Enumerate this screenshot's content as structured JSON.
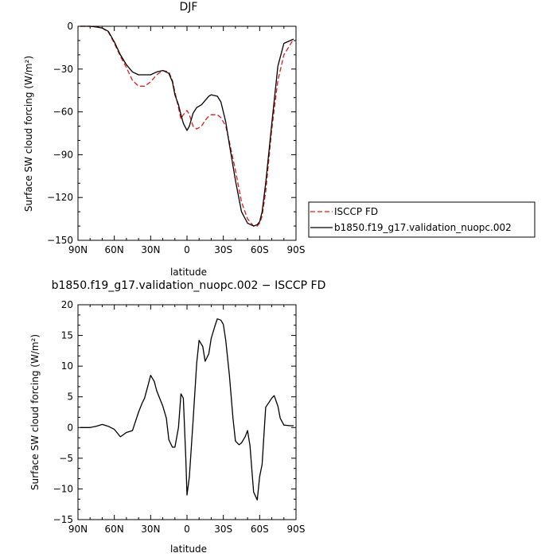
{
  "chart_data": [
    {
      "type": "line",
      "title": "DJF",
      "xlabel": "latitude",
      "ylabel": "Surface SW cloud forcing (W/m²)",
      "xlim": [
        -90,
        90
      ],
      "ylim": [
        -150,
        0
      ],
      "x_ticks": [
        -90,
        -60,
        -30,
        0,
        30,
        60,
        90
      ],
      "x_tick_labels": [
        "90N",
        "60N",
        "30N",
        "0",
        "30S",
        "60S",
        "90S"
      ],
      "y_ticks": [
        0,
        -30,
        -60,
        -90,
        -120,
        -150
      ],
      "y_tick_labels": [
        "0",
        "−30",
        "−60",
        "−90",
        "−120",
        "−150"
      ],
      "legend_position": "right",
      "series": [
        {
          "name": "ISCCP FD",
          "color": "#e41a1c",
          "dash": "dashed",
          "x": [
            -88,
            -80,
            -75,
            -70,
            -65,
            -60,
            -55,
            -50,
            -45,
            -40,
            -35,
            -30,
            -25,
            -20,
            -15,
            -12,
            -10,
            -7,
            -5,
            -3,
            0,
            2,
            5,
            8,
            12,
            15,
            18,
            20,
            25,
            28,
            32,
            35,
            40,
            45,
            50,
            55,
            58,
            60,
            62,
            65,
            70,
            75,
            80,
            88
          ],
          "y": [
            0,
            0,
            -0.4,
            -1.2,
            -4,
            -12,
            -21,
            -29,
            -38,
            -42,
            -42,
            -39,
            -34,
            -31,
            -32,
            -38,
            -46,
            -57,
            -65,
            -62,
            -59,
            -62,
            -70,
            -72,
            -70,
            -66,
            -63,
            -62,
            -62,
            -64,
            -70,
            -81,
            -101,
            -123,
            -135,
            -140,
            -140,
            -138,
            -133,
            -116,
            -72,
            -38,
            -20,
            -9
          ]
        },
        {
          "name": "b1850.f19_g17.validation_nuopc.002",
          "color": "#000000",
          "dash": "solid",
          "x": [
            -88,
            -80,
            -75,
            -70,
            -65,
            -60,
            -55,
            -50,
            -45,
            -40,
            -35,
            -30,
            -25,
            -20,
            -15,
            -12,
            -10,
            -7,
            -5,
            -3,
            0,
            2,
            5,
            8,
            12,
            15,
            18,
            20,
            25,
            28,
            32,
            35,
            40,
            45,
            50,
            55,
            58,
            60,
            62,
            65,
            70,
            75,
            80,
            88
          ],
          "y": [
            0,
            0,
            -0.5,
            -1.2,
            -3.5,
            -11,
            -20,
            -27,
            -32,
            -34,
            -34,
            -34,
            -32,
            -31,
            -33,
            -39,
            -48,
            -55,
            -62,
            -68,
            -73,
            -70,
            -61,
            -57,
            -55,
            -52,
            -49,
            -48,
            -49,
            -53,
            -67,
            -83,
            -108,
            -130,
            -138,
            -140,
            -139,
            -137,
            -130,
            -110,
            -68,
            -28,
            -12,
            -9
          ]
        }
      ]
    },
    {
      "type": "line",
      "title": "b1850.f19_g17.validation_nuopc.002 − ISCCP FD",
      "xlabel": "latitude",
      "ylabel": "Surface SW cloud forcing (W/m²)",
      "xlim": [
        -90,
        90
      ],
      "ylim": [
        -15,
        20
      ],
      "x_ticks": [
        -90,
        -60,
        -30,
        0,
        30,
        60,
        90
      ],
      "x_tick_labels": [
        "90N",
        "60N",
        "30N",
        "0",
        "30S",
        "60S",
        "90S"
      ],
      "y_ticks": [
        20,
        15,
        10,
        5,
        0,
        -5,
        -10,
        -15
      ],
      "y_tick_labels": [
        "20",
        "15",
        "10",
        "5",
        "0",
        "−5",
        "−10",
        "−15"
      ],
      "series": [
        {
          "color": "#000000",
          "dash": "solid",
          "x": [
            -88,
            -80,
            -75,
            -70,
            -65,
            -60,
            -55,
            -50,
            -45,
            -40,
            -37,
            -35,
            -32,
            -30,
            -27,
            -25,
            -22,
            -20,
            -17,
            -15,
            -12,
            -10,
            -7,
            -5,
            -3,
            -1,
            0,
            2,
            5,
            8,
            10,
            13,
            15,
            18,
            20,
            23,
            25,
            28,
            30,
            32,
            35,
            38,
            40,
            43,
            45,
            48,
            50,
            52,
            55,
            58,
            60,
            62,
            65,
            70,
            72,
            75,
            77,
            80,
            85,
            88
          ],
          "y": [
            0,
            0,
            0.2,
            0.5,
            0.2,
            -0.3,
            -1.5,
            -0.8,
            -0.5,
            2.5,
            4,
            4.8,
            7,
            8.5,
            7.5,
            6,
            4.5,
            3.5,
            1.5,
            -2,
            -3.2,
            -3.2,
            0,
            5.5,
            4.8,
            -5,
            -11,
            -8,
            1,
            10.5,
            14.2,
            13.2,
            10.8,
            12,
            14.5,
            16.5,
            17.7,
            17.5,
            16.8,
            14.2,
            8.5,
            1.5,
            -2.2,
            -2.8,
            -2.5,
            -1.5,
            -0.5,
            -3,
            -10.5,
            -11.8,
            -8,
            -6,
            3.3,
            4.8,
            5.2,
            3.5,
            1.5,
            0.4,
            0.3,
            0.3
          ]
        }
      ]
    }
  ]
}
